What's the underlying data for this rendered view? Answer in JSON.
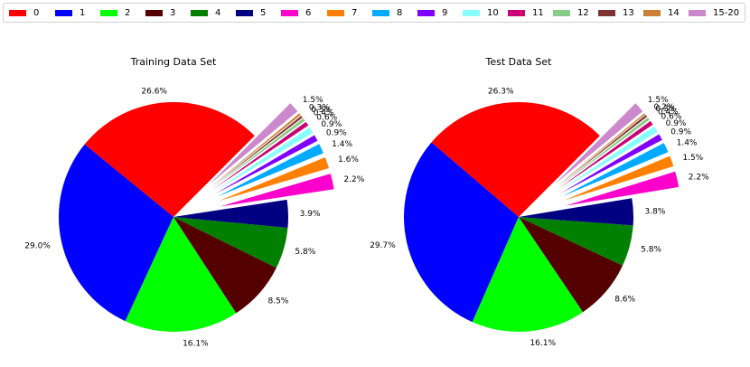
{
  "chart_data": [
    {
      "type": "pie",
      "title": "Training Data Set",
      "categories": [
        "0",
        "1",
        "2",
        "3",
        "4",
        "5",
        "6",
        "7",
        "8",
        "9",
        "10",
        "11",
        "12",
        "13",
        "14",
        "15-20"
      ],
      "values": [
        26.6,
        29.0,
        16.1,
        8.5,
        5.8,
        3.9,
        2.2,
        1.6,
        1.4,
        0.9,
        0.9,
        0.6,
        0.4,
        0.3,
        0.3,
        1.5
      ],
      "labels": [
        "26.6%",
        "29.0%",
        "16.1%",
        "8.5%",
        "5.8%",
        "3.9%",
        "2.2%",
        "1.6%",
        "1.4%",
        "0.9%",
        "0.9%",
        "0.6%",
        "0.4%",
        "0.3%",
        "0.3%",
        "1.5%"
      ],
      "exploded": [
        false,
        false,
        false,
        false,
        false,
        false,
        true,
        true,
        true,
        true,
        true,
        true,
        true,
        true,
        true,
        true
      ]
    },
    {
      "type": "pie",
      "title": "Test Data Set",
      "categories": [
        "0",
        "1",
        "2",
        "3",
        "4",
        "5",
        "6",
        "7",
        "8",
        "9",
        "10",
        "11",
        "12",
        "13",
        "14",
        "15-20"
      ],
      "values": [
        26.3,
        29.7,
        16.1,
        8.6,
        5.8,
        3.8,
        2.2,
        1.5,
        1.4,
        0.9,
        0.9,
        0.6,
        0.4,
        0.3,
        0.2,
        1.5
      ],
      "labels": [
        "26.3%",
        "29.7%",
        "16.1%",
        "8.6%",
        "5.8%",
        "3.8%",
        "2.2%",
        "1.5%",
        "1.4%",
        "0.9%",
        "0.9%",
        "0.6%",
        "0.4%",
        "0.3%",
        "0.2%",
        "1.5%"
      ],
      "exploded": [
        false,
        false,
        false,
        false,
        false,
        false,
        true,
        true,
        true,
        true,
        true,
        true,
        true,
        true,
        true,
        true
      ]
    }
  ],
  "legend": {
    "placement": "top",
    "entries": [
      {
        "label": "0",
        "color": "#ff0000"
      },
      {
        "label": "1",
        "color": "#0000ff"
      },
      {
        "label": "2",
        "color": "#00ff00"
      },
      {
        "label": "3",
        "color": "#550000"
      },
      {
        "label": "4",
        "color": "#008000"
      },
      {
        "label": "5",
        "color": "#000080"
      },
      {
        "label": "6",
        "color": "#ff00cc"
      },
      {
        "label": "7",
        "color": "#ff8000"
      },
      {
        "label": "8",
        "color": "#00aaff"
      },
      {
        "label": "9",
        "color": "#7f00ff"
      },
      {
        "label": "10",
        "color": "#88ffff"
      },
      {
        "label": "11",
        "color": "#cc0077"
      },
      {
        "label": "12",
        "color": "#88cc88"
      },
      {
        "label": "13",
        "color": "#803333"
      },
      {
        "label": "14",
        "color": "#cc8033"
      },
      {
        "label": "15-20",
        "color": "#cc88cc"
      }
    ]
  }
}
